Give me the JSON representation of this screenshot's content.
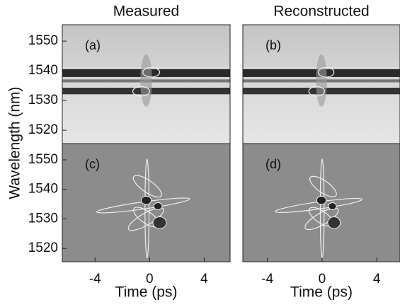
{
  "chart_data": [
    {
      "type": "contour",
      "title": "Measured",
      "panel_label": "(a)",
      "xlim": [
        -6.4,
        5.9
      ],
      "ylim": [
        1515.5,
        1555.5
      ],
      "yticks": [
        1520,
        1530,
        1540,
        1550
      ]
    },
    {
      "type": "contour",
      "title": "Reconstructed",
      "panel_label": "(b)",
      "xlim": [
        -5.8,
        5.7
      ],
      "ylim": [
        1515.5,
        1555.5
      ]
    },
    {
      "type": "contour",
      "panel_label": "(c)",
      "xlabel": "Time (ps)",
      "xlim": [
        -6.4,
        5.9
      ],
      "ylim": [
        1515.5,
        1555.5
      ],
      "xticks": [
        -4,
        0,
        4
      ],
      "yticks": [
        1520,
        1530,
        1540,
        1550
      ]
    },
    {
      "type": "contour",
      "panel_label": "(d)",
      "xlabel": "Time (ps)",
      "xlim": [
        -5.8,
        5.7
      ],
      "ylim": [
        1515.5,
        1555.5
      ],
      "xticks": [
        -4,
        0,
        4
      ]
    }
  ],
  "figure": {
    "ylabel": "Wavelength (nm)"
  }
}
